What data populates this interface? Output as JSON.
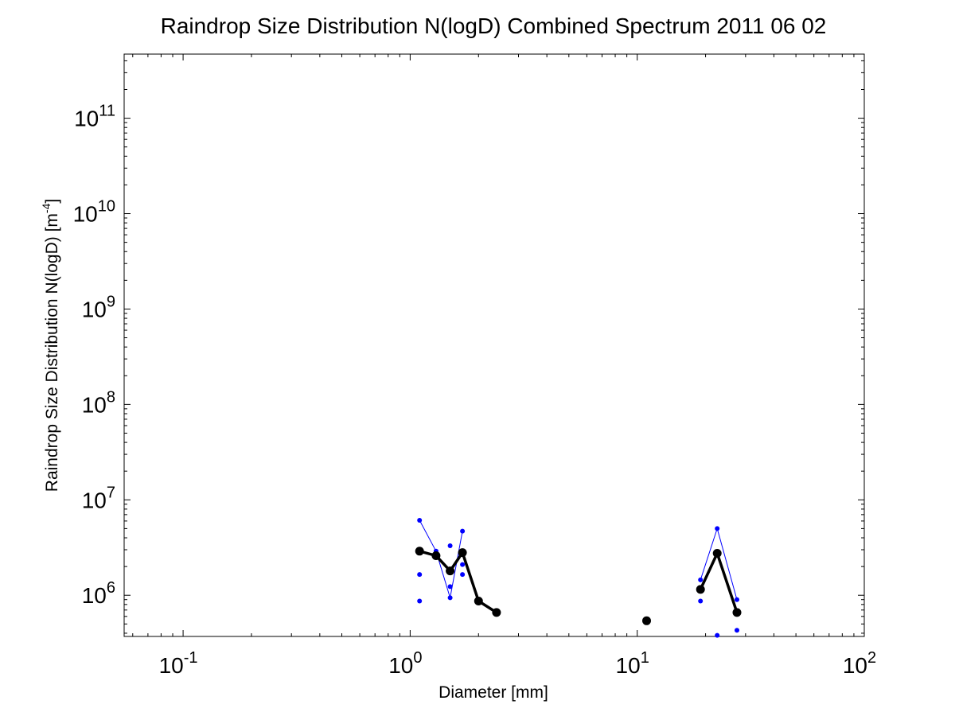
{
  "chart_data": {
    "type": "scatter",
    "title": "Raindrop Size Distribution N(logD) Combined Spectrum 2011 06 02",
    "xlabel": "Diameter [mm]",
    "ylabel": "Raindrop Size Distribution N(logD) [m",
    "ylabel_sup": "-4",
    "ylabel_end": "]",
    "x_scale": "log",
    "y_scale": "log",
    "xlim": [
      0.055,
      100
    ],
    "ylim": [
      370000,
      470000000000
    ],
    "grid": false,
    "x_ticks": [
      {
        "value": 0.1,
        "base": "10",
        "exp": "-1"
      },
      {
        "value": 1,
        "base": "10",
        "exp": "0"
      },
      {
        "value": 10,
        "base": "10",
        "exp": "1"
      },
      {
        "value": 100,
        "base": "10",
        "exp": "2"
      }
    ],
    "y_ticks": [
      {
        "value": 1000000,
        "base": "10",
        "exp": "6"
      },
      {
        "value": 10000000,
        "base": "10",
        "exp": "7"
      },
      {
        "value": 100000000,
        "base": "10",
        "exp": "8"
      },
      {
        "value": 1000000000,
        "base": "10",
        "exp": "9"
      },
      {
        "value": 10000000000,
        "base": "10",
        "exp": "10"
      },
      {
        "value": 100000000000,
        "base": "10",
        "exp": "11"
      }
    ],
    "series": [
      {
        "color": "#0000ff",
        "style": "thin line with small dots",
        "segments": [
          [
            [
              1.1,
              6100000
            ],
            [
              1.3,
              2900000
            ],
            [
              1.5,
              940000
            ],
            [
              1.7,
              4700000
            ]
          ],
          [
            [
              19,
              1450000
            ],
            [
              22.5,
              5000000
            ],
            [
              27.5,
              900000
            ]
          ]
        ],
        "points": [
          [
            1.1,
            6100000
          ],
          [
            1.1,
            1650000
          ],
          [
            1.1,
            870000
          ],
          [
            1.3,
            2900000
          ],
          [
            1.3,
            2700000
          ],
          [
            1.5,
            3300000
          ],
          [
            1.5,
            1230000
          ],
          [
            1.5,
            940000
          ],
          [
            1.7,
            4700000
          ],
          [
            1.7,
            2100000
          ],
          [
            1.7,
            1650000
          ],
          [
            19,
            1450000
          ],
          [
            19,
            870000
          ],
          [
            22.5,
            5000000
          ],
          [
            22.5,
            380000
          ],
          [
            27.5,
            900000
          ],
          [
            27.5,
            430000
          ]
        ]
      },
      {
        "color": "#000000",
        "style": "thick line with large dots",
        "segments": [
          [
            [
              1.1,
              2900000
            ],
            [
              1.3,
              2600000
            ],
            [
              1.5,
              1800000
            ],
            [
              1.7,
              2800000
            ],
            [
              2.0,
              870000
            ],
            [
              2.4,
              660000
            ]
          ],
          [
            [
              19,
              1150000
            ],
            [
              22.5,
              2750000
            ],
            [
              27.5,
              660000
            ]
          ]
        ],
        "points": [
          [
            1.1,
            2900000
          ],
          [
            1.3,
            2600000
          ],
          [
            1.5,
            1800000
          ],
          [
            1.7,
            2800000
          ],
          [
            2.0,
            870000
          ],
          [
            2.4,
            660000
          ],
          [
            11,
            540000
          ],
          [
            19,
            1150000
          ],
          [
            22.5,
            2750000
          ],
          [
            27.5,
            660000
          ]
        ]
      }
    ]
  }
}
